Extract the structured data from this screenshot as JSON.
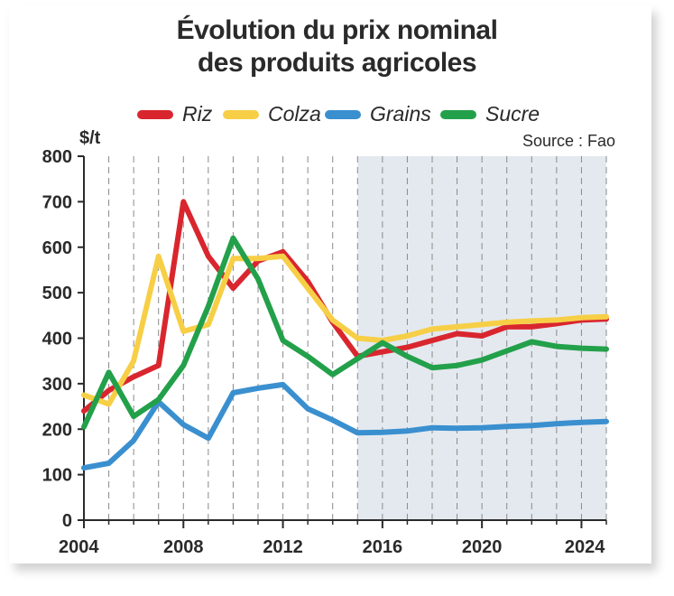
{
  "chart_data": {
    "type": "line",
    "title_line1": "Évolution du prix nominal",
    "title_line2": "des produits agricoles",
    "ylabel": "$/t",
    "source": "Source : Fao",
    "xlim": [
      2004,
      2025
    ],
    "ylim": [
      0,
      800
    ],
    "x_ticks": [
      2004,
      2008,
      2012,
      2016,
      2020,
      2024
    ],
    "y_ticks": [
      0,
      100,
      200,
      300,
      400,
      500,
      600,
      700,
      800
    ],
    "projection_start": 2015,
    "legend_position": "top",
    "x": [
      2004,
      2005,
      2006,
      2007,
      2008,
      2009,
      2010,
      2011,
      2012,
      2013,
      2014,
      2015,
      2016,
      2017,
      2018,
      2019,
      2020,
      2021,
      2022,
      2023,
      2024,
      2025
    ],
    "series": [
      {
        "name": "Riz",
        "color": "#d9262e",
        "values": [
          240,
          285,
          315,
          340,
          700,
          580,
          510,
          570,
          590,
          525,
          435,
          360,
          370,
          380,
          395,
          410,
          405,
          425,
          425,
          432,
          440,
          442
        ]
      },
      {
        "name": "Colza",
        "color": "#f7cf46",
        "values": [
          275,
          255,
          350,
          580,
          415,
          430,
          575,
          575,
          580,
          510,
          440,
          400,
          395,
          405,
          420,
          425,
          430,
          435,
          438,
          440,
          445,
          447
        ]
      },
      {
        "name": "Grains",
        "color": "#3a8fcf",
        "values": [
          115,
          125,
          175,
          260,
          210,
          180,
          280,
          290,
          298,
          245,
          220,
          192,
          193,
          196,
          203,
          202,
          203,
          206,
          208,
          212,
          215,
          217
        ]
      },
      {
        "name": "Sucre",
        "color": "#23a04a",
        "values": [
          205,
          325,
          228,
          265,
          340,
          470,
          620,
          530,
          395,
          360,
          320,
          355,
          390,
          360,
          335,
          340,
          352,
          372,
          392,
          382,
          378,
          376
        ]
      }
    ]
  }
}
